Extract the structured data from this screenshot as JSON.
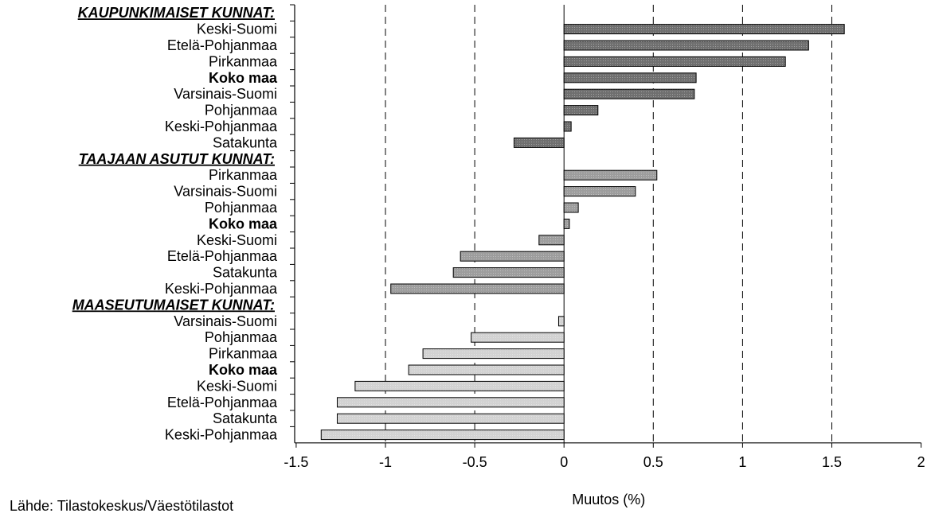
{
  "chart_data": {
    "type": "bar",
    "orientation": "horizontal",
    "xlabel": "Muutos (%)",
    "xlim": [
      -1.5,
      2
    ],
    "xticks": [
      -1.5,
      -1,
      -0.5,
      0,
      0.5,
      1,
      1.5,
      2
    ],
    "xtick_labels": [
      "-1.5",
      "-1",
      "-0.5",
      "0",
      "0.5",
      "1",
      "1.5",
      "2"
    ],
    "grid": "vertical dashed",
    "groups": [
      {
        "title": "KAUPUNKIMAISET KUNNAT:",
        "color": "#6f6f6f",
        "rows": [
          {
            "label": "Keski-Suomi",
            "value": 1.57,
            "bold": false
          },
          {
            "label": "Etelä-Pohjanmaa",
            "value": 1.37,
            "bold": false
          },
          {
            "label": "Pirkanmaa",
            "value": 1.24,
            "bold": false
          },
          {
            "label": "Koko maa",
            "value": 0.74,
            "bold": true
          },
          {
            "label": "Varsinais-Suomi",
            "value": 0.73,
            "bold": false
          },
          {
            "label": "Pohjanmaa",
            "value": 0.19,
            "bold": false
          },
          {
            "label": "Keski-Pohjanmaa",
            "value": 0.04,
            "bold": false
          },
          {
            "label": "Satakunta",
            "value": -0.28,
            "bold": false
          }
        ]
      },
      {
        "title": "TAAJAAN ASUTUT KUNNAT:",
        "color": "#9d9d9d",
        "rows": [
          {
            "label": "Pirkanmaa",
            "value": 0.52,
            "bold": false
          },
          {
            "label": "Varsinais-Suomi",
            "value": 0.4,
            "bold": false
          },
          {
            "label": "Pohjanmaa",
            "value": 0.08,
            "bold": false
          },
          {
            "label": "Koko maa",
            "value": 0.03,
            "bold": true
          },
          {
            "label": "Keski-Suomi",
            "value": -0.14,
            "bold": false
          },
          {
            "label": "Etelä-Pohjanmaa",
            "value": -0.58,
            "bold": false
          },
          {
            "label": "Satakunta",
            "value": -0.62,
            "bold": false
          },
          {
            "label": "Keski-Pohjanmaa",
            "value": -0.97,
            "bold": false
          }
        ]
      },
      {
        "title": "MAASEUTUMAISET KUNNAT:",
        "color": "#d2d2d2",
        "rows": [
          {
            "label": "Varsinais-Suomi",
            "value": -0.03,
            "bold": false
          },
          {
            "label": "Pohjanmaa",
            "value": -0.52,
            "bold": false
          },
          {
            "label": "Pirkanmaa",
            "value": -0.79,
            "bold": false
          },
          {
            "label": "Koko maa",
            "value": -0.87,
            "bold": true
          },
          {
            "label": "Keski-Suomi",
            "value": -1.17,
            "bold": false
          },
          {
            "label": "Etelä-Pohjanmaa",
            "value": -1.27,
            "bold": false
          },
          {
            "label": "Satakunta",
            "value": -1.27,
            "bold": false
          },
          {
            "label": "Keski-Pohjanmaa",
            "value": -1.36,
            "bold": false
          }
        ]
      }
    ]
  },
  "footer": {
    "source": "Lähde: Tilastokeskus/Väestötilastot"
  }
}
